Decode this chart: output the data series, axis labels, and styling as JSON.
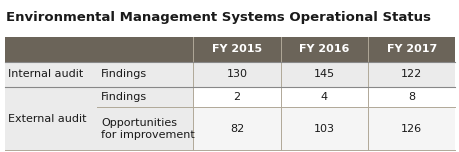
{
  "title": "Environmental Management Systems Operational Status",
  "header_bg": "#6b6459",
  "header_text_color": "#ffffff",
  "header_labels": [
    "FY 2015",
    "FY 2016",
    "FY 2017"
  ],
  "rows": [
    {
      "group": "Internal audit",
      "subgroup": "Findings",
      "values": [
        "130",
        "145",
        "122"
      ]
    },
    {
      "group": "External audit",
      "subgroup": "Findings",
      "values": [
        "2",
        "4",
        "8"
      ]
    },
    {
      "group": "",
      "subgroup": "Opportunities\nfor improvement",
      "values": [
        "82",
        "103",
        "126"
      ]
    }
  ],
  "title_fontsize": 9.5,
  "header_fontsize": 8.0,
  "cell_fontsize": 8.0,
  "bg_color": "#ffffff",
  "row0_data_bg": "#f5f5f5",
  "row1_data_bg": "#ffffff",
  "row2_data_bg": "#f5f5f5",
  "left_bg": "#ebebeb"
}
